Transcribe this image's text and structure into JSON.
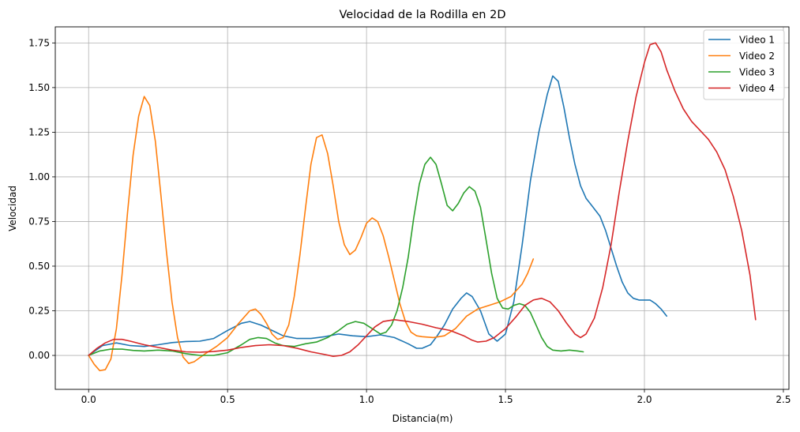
{
  "chart_data": {
    "type": "line",
    "title": "Velocidad de la Rodilla en 2D",
    "xlabel": "Distancia(m)",
    "ylabel": "Velocidad",
    "xlim": [
      -0.12,
      2.52
    ],
    "ylim": [
      -0.19,
      1.84
    ],
    "xticks": [
      0.0,
      0.5,
      1.0,
      1.5,
      2.0,
      2.5
    ],
    "xtick_labels": [
      "0.0",
      "0.5",
      "1.0",
      "1.5",
      "2.0",
      "2.5"
    ],
    "yticks": [
      0.0,
      0.25,
      0.5,
      0.75,
      1.0,
      1.25,
      1.5,
      1.75
    ],
    "ytick_labels": [
      "0.00",
      "0.25",
      "0.50",
      "0.75",
      "1.00",
      "1.25",
      "1.50",
      "1.75"
    ],
    "grid": true,
    "legend_position": "top-right",
    "series": [
      {
        "name": "Video 1",
        "color": "#1f77b4",
        "points": [
          [
            0.0,
            0.0
          ],
          [
            0.05,
            0.055
          ],
          [
            0.1,
            0.07
          ],
          [
            0.15,
            0.055
          ],
          [
            0.2,
            0.05
          ],
          [
            0.25,
            0.06
          ],
          [
            0.3,
            0.072
          ],
          [
            0.35,
            0.078
          ],
          [
            0.4,
            0.08
          ],
          [
            0.45,
            0.095
          ],
          [
            0.5,
            0.14
          ],
          [
            0.55,
            0.18
          ],
          [
            0.58,
            0.19
          ],
          [
            0.62,
            0.17
          ],
          [
            0.66,
            0.14
          ],
          [
            0.7,
            0.11
          ],
          [
            0.75,
            0.095
          ],
          [
            0.8,
            0.095
          ],
          [
            0.85,
            0.105
          ],
          [
            0.9,
            0.12
          ],
          [
            0.95,
            0.11
          ],
          [
            1.0,
            0.105
          ],
          [
            1.05,
            0.115
          ],
          [
            1.1,
            0.1
          ],
          [
            1.15,
            0.065
          ],
          [
            1.18,
            0.04
          ],
          [
            1.2,
            0.04
          ],
          [
            1.23,
            0.06
          ],
          [
            1.25,
            0.1
          ],
          [
            1.28,
            0.17
          ],
          [
            1.31,
            0.26
          ],
          [
            1.34,
            0.32
          ],
          [
            1.36,
            0.35
          ],
          [
            1.38,
            0.33
          ],
          [
            1.41,
            0.25
          ],
          [
            1.44,
            0.12
          ],
          [
            1.47,
            0.08
          ],
          [
            1.5,
            0.12
          ],
          [
            1.53,
            0.3
          ],
          [
            1.56,
            0.62
          ],
          [
            1.59,
            0.98
          ],
          [
            1.62,
            1.25
          ],
          [
            1.65,
            1.46
          ],
          [
            1.67,
            1.565
          ],
          [
            1.69,
            1.535
          ],
          [
            1.71,
            1.39
          ],
          [
            1.73,
            1.22
          ],
          [
            1.75,
            1.07
          ],
          [
            1.77,
            0.95
          ],
          [
            1.79,
            0.88
          ],
          [
            1.81,
            0.84
          ],
          [
            1.84,
            0.78
          ],
          [
            1.86,
            0.7
          ],
          [
            1.88,
            0.6
          ],
          [
            1.9,
            0.5
          ],
          [
            1.92,
            0.41
          ],
          [
            1.94,
            0.35
          ],
          [
            1.96,
            0.32
          ],
          [
            1.98,
            0.31
          ],
          [
            2.0,
            0.31
          ],
          [
            2.02,
            0.31
          ],
          [
            2.04,
            0.29
          ],
          [
            2.06,
            0.26
          ],
          [
            2.08,
            0.22
          ]
        ]
      },
      {
        "name": "Video 2",
        "color": "#ff7f0e",
        "points": [
          [
            0.0,
            0.0
          ],
          [
            0.02,
            -0.05
          ],
          [
            0.04,
            -0.085
          ],
          [
            0.06,
            -0.08
          ],
          [
            0.08,
            -0.02
          ],
          [
            0.1,
            0.15
          ],
          [
            0.12,
            0.45
          ],
          [
            0.14,
            0.8
          ],
          [
            0.16,
            1.12
          ],
          [
            0.18,
            1.34
          ],
          [
            0.2,
            1.45
          ],
          [
            0.22,
            1.4
          ],
          [
            0.24,
            1.2
          ],
          [
            0.26,
            0.9
          ],
          [
            0.28,
            0.58
          ],
          [
            0.3,
            0.3
          ],
          [
            0.32,
            0.1
          ],
          [
            0.34,
            -0.01
          ],
          [
            0.36,
            -0.045
          ],
          [
            0.38,
            -0.035
          ],
          [
            0.42,
            0.01
          ],
          [
            0.46,
            0.05
          ],
          [
            0.5,
            0.1
          ],
          [
            0.54,
            0.18
          ],
          [
            0.58,
            0.25
          ],
          [
            0.6,
            0.26
          ],
          [
            0.62,
            0.23
          ],
          [
            0.64,
            0.18
          ],
          [
            0.66,
            0.12
          ],
          [
            0.68,
            0.09
          ],
          [
            0.7,
            0.1
          ],
          [
            0.72,
            0.17
          ],
          [
            0.74,
            0.33
          ],
          [
            0.76,
            0.56
          ],
          [
            0.78,
            0.82
          ],
          [
            0.8,
            1.07
          ],
          [
            0.82,
            1.22
          ],
          [
            0.84,
            1.235
          ],
          [
            0.86,
            1.13
          ],
          [
            0.88,
            0.95
          ],
          [
            0.9,
            0.75
          ],
          [
            0.92,
            0.62
          ],
          [
            0.94,
            0.565
          ],
          [
            0.96,
            0.59
          ],
          [
            0.98,
            0.66
          ],
          [
            1.0,
            0.74
          ],
          [
            1.02,
            0.77
          ],
          [
            1.04,
            0.75
          ],
          [
            1.06,
            0.67
          ],
          [
            1.08,
            0.55
          ],
          [
            1.1,
            0.42
          ],
          [
            1.12,
            0.29
          ],
          [
            1.14,
            0.19
          ],
          [
            1.16,
            0.13
          ],
          [
            1.18,
            0.11
          ],
          [
            1.2,
            0.105
          ],
          [
            1.24,
            0.1
          ],
          [
            1.28,
            0.11
          ],
          [
            1.32,
            0.15
          ],
          [
            1.36,
            0.22
          ],
          [
            1.4,
            0.26
          ],
          [
            1.44,
            0.28
          ],
          [
            1.48,
            0.3
          ],
          [
            1.52,
            0.33
          ],
          [
            1.56,
            0.4
          ],
          [
            1.58,
            0.46
          ],
          [
            1.6,
            0.54
          ]
        ]
      },
      {
        "name": "Video 3",
        "color": "#2ca02c",
        "points": [
          [
            0.0,
            0.0
          ],
          [
            0.04,
            0.025
          ],
          [
            0.08,
            0.035
          ],
          [
            0.12,
            0.035
          ],
          [
            0.16,
            0.028
          ],
          [
            0.2,
            0.025
          ],
          [
            0.25,
            0.03
          ],
          [
            0.3,
            0.025
          ],
          [
            0.35,
            0.01
          ],
          [
            0.4,
            0.0
          ],
          [
            0.45,
            0.0
          ],
          [
            0.5,
            0.015
          ],
          [
            0.55,
            0.06
          ],
          [
            0.58,
            0.09
          ],
          [
            0.61,
            0.1
          ],
          [
            0.64,
            0.095
          ],
          [
            0.67,
            0.07
          ],
          [
            0.7,
            0.055
          ],
          [
            0.74,
            0.05
          ],
          [
            0.78,
            0.065
          ],
          [
            0.82,
            0.075
          ],
          [
            0.86,
            0.1
          ],
          [
            0.9,
            0.14
          ],
          [
            0.93,
            0.175
          ],
          [
            0.96,
            0.19
          ],
          [
            0.99,
            0.18
          ],
          [
            1.02,
            0.15
          ],
          [
            1.05,
            0.12
          ],
          [
            1.07,
            0.13
          ],
          [
            1.09,
            0.17
          ],
          [
            1.11,
            0.25
          ],
          [
            1.13,
            0.38
          ],
          [
            1.15,
            0.55
          ],
          [
            1.17,
            0.77
          ],
          [
            1.19,
            0.96
          ],
          [
            1.21,
            1.07
          ],
          [
            1.23,
            1.11
          ],
          [
            1.25,
            1.07
          ],
          [
            1.27,
            0.96
          ],
          [
            1.29,
            0.84
          ],
          [
            1.31,
            0.81
          ],
          [
            1.33,
            0.85
          ],
          [
            1.35,
            0.91
          ],
          [
            1.37,
            0.945
          ],
          [
            1.39,
            0.92
          ],
          [
            1.41,
            0.83
          ],
          [
            1.43,
            0.65
          ],
          [
            1.45,
            0.46
          ],
          [
            1.47,
            0.32
          ],
          [
            1.49,
            0.265
          ],
          [
            1.51,
            0.26
          ],
          [
            1.53,
            0.28
          ],
          [
            1.55,
            0.29
          ],
          [
            1.57,
            0.28
          ],
          [
            1.59,
            0.24
          ],
          [
            1.61,
            0.17
          ],
          [
            1.63,
            0.1
          ],
          [
            1.65,
            0.05
          ],
          [
            1.67,
            0.03
          ],
          [
            1.7,
            0.025
          ],
          [
            1.73,
            0.03
          ],
          [
            1.76,
            0.025
          ],
          [
            1.78,
            0.02
          ]
        ]
      },
      {
        "name": "Video 4",
        "color": "#d62728",
        "points": [
          [
            0.0,
            0.0
          ],
          [
            0.03,
            0.04
          ],
          [
            0.06,
            0.07
          ],
          [
            0.09,
            0.09
          ],
          [
            0.12,
            0.09
          ],
          [
            0.15,
            0.08
          ],
          [
            0.2,
            0.06
          ],
          [
            0.25,
            0.045
          ],
          [
            0.3,
            0.03
          ],
          [
            0.35,
            0.02
          ],
          [
            0.4,
            0.018
          ],
          [
            0.45,
            0.022
          ],
          [
            0.5,
            0.03
          ],
          [
            0.55,
            0.045
          ],
          [
            0.6,
            0.055
          ],
          [
            0.65,
            0.06
          ],
          [
            0.7,
            0.055
          ],
          [
            0.75,
            0.04
          ],
          [
            0.8,
            0.02
          ],
          [
            0.85,
            0.005
          ],
          [
            0.88,
            -0.005
          ],
          [
            0.91,
            0.0
          ],
          [
            0.94,
            0.02
          ],
          [
            0.97,
            0.06
          ],
          [
            1.0,
            0.11
          ],
          [
            1.03,
            0.16
          ],
          [
            1.06,
            0.19
          ],
          [
            1.1,
            0.2
          ],
          [
            1.15,
            0.19
          ],
          [
            1.2,
            0.175
          ],
          [
            1.25,
            0.155
          ],
          [
            1.3,
            0.14
          ],
          [
            1.35,
            0.11
          ],
          [
            1.38,
            0.085
          ],
          [
            1.4,
            0.075
          ],
          [
            1.43,
            0.08
          ],
          [
            1.46,
            0.1
          ],
          [
            1.5,
            0.15
          ],
          [
            1.54,
            0.22
          ],
          [
            1.57,
            0.28
          ],
          [
            1.6,
            0.31
          ],
          [
            1.63,
            0.32
          ],
          [
            1.66,
            0.3
          ],
          [
            1.69,
            0.25
          ],
          [
            1.72,
            0.18
          ],
          [
            1.75,
            0.12
          ],
          [
            1.77,
            0.1
          ],
          [
            1.79,
            0.12
          ],
          [
            1.82,
            0.21
          ],
          [
            1.85,
            0.38
          ],
          [
            1.88,
            0.62
          ],
          [
            1.91,
            0.92
          ],
          [
            1.94,
            1.2
          ],
          [
            1.97,
            1.45
          ],
          [
            2.0,
            1.64
          ],
          [
            2.02,
            1.74
          ],
          [
            2.04,
            1.75
          ],
          [
            2.06,
            1.7
          ],
          [
            2.08,
            1.6
          ],
          [
            2.11,
            1.48
          ],
          [
            2.14,
            1.38
          ],
          [
            2.17,
            1.31
          ],
          [
            2.2,
            1.26
          ],
          [
            2.23,
            1.21
          ],
          [
            2.26,
            1.14
          ],
          [
            2.29,
            1.04
          ],
          [
            2.32,
            0.89
          ],
          [
            2.35,
            0.7
          ],
          [
            2.38,
            0.45
          ],
          [
            2.4,
            0.2
          ]
        ]
      }
    ]
  }
}
